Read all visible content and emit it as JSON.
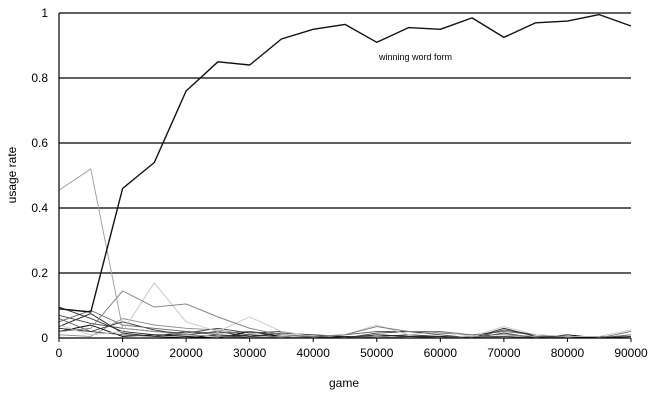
{
  "chart_data": {
    "type": "line",
    "title": "",
    "xlabel": "game",
    "ylabel": "usage rate",
    "xlim": [
      0,
      90000
    ],
    "ylim": [
      0,
      1
    ],
    "x_ticks": [
      "0",
      "10000",
      "20000",
      "30000",
      "40000",
      "50000",
      "60000",
      "70000",
      "80000",
      "90000"
    ],
    "y_ticks": [
      "0",
      "0.2",
      "0.4",
      "0.6",
      "0.8",
      "1"
    ],
    "grid": "horizontal",
    "annotation": "winning word form",
    "x": [
      0,
      5000,
      10000,
      15000,
      20000,
      25000,
      30000,
      35000,
      40000,
      45000,
      50000,
      55000,
      60000,
      65000,
      70000,
      75000,
      80000,
      85000,
      90000
    ],
    "series": [
      {
        "color": "#111111",
        "values": [
          0.09,
          0.08,
          0.46,
          0.54,
          0.76,
          0.85,
          0.84,
          0.92,
          0.95,
          0.965,
          0.91,
          0.955,
          0.95,
          0.985,
          0.925,
          0.97,
          0.975,
          0.995,
          0.96
        ]
      },
      {
        "color": "#9a9a9a",
        "values": [
          0.455,
          0.52,
          0.03,
          0.02,
          0.01,
          0.005,
          0.0,
          0.005,
          0.0,
          0.0,
          0.005,
          0.0,
          0.0,
          0.005,
          0.0,
          0.0,
          0.0,
          0.0,
          0.0
        ]
      },
      {
        "color": "#7a7a7a",
        "values": [
          0.02,
          0.03,
          0.145,
          0.095,
          0.105,
          0.065,
          0.03,
          0.01,
          0.005,
          0.01,
          0.035,
          0.02,
          0.02,
          0.01,
          0.01,
          0.005,
          0.0,
          0.0,
          0.02
        ]
      },
      {
        "color": "#c4c4c4",
        "values": [
          0.04,
          0.01,
          0.02,
          0.17,
          0.05,
          0.02,
          0.065,
          0.02,
          0.005,
          0.01,
          0.04,
          0.01,
          0.02,
          0.005,
          0.035,
          0.01,
          0.005,
          0.005,
          0.025
        ]
      },
      {
        "color": "#222222",
        "values": [
          0.095,
          0.06,
          0.02,
          0.01,
          0.01,
          0.005,
          0.01,
          0.005,
          0.0,
          0.0,
          0.01,
          0.005,
          0.005,
          0.0,
          0.03,
          0.005,
          0.005,
          0.0,
          0.005
        ]
      },
      {
        "color": "#444444",
        "values": [
          0.07,
          0.045,
          0.03,
          0.02,
          0.015,
          0.03,
          0.015,
          0.02,
          0.005,
          0.0,
          0.015,
          0.02,
          0.01,
          0.0,
          0.025,
          0.01,
          0.0,
          0.0,
          0.0
        ]
      },
      {
        "color": "#666666",
        "values": [
          0.05,
          0.085,
          0.04,
          0.03,
          0.02,
          0.015,
          0.02,
          0.01,
          0.005,
          0.01,
          0.02,
          0.02,
          0.015,
          0.01,
          0.02,
          0.01,
          0.005,
          0.0,
          0.01
        ]
      },
      {
        "color": "#333333",
        "values": [
          0.03,
          0.02,
          0.05,
          0.025,
          0.01,
          0.02,
          0.005,
          0.015,
          0.01,
          0.005,
          0.005,
          0.01,
          0.005,
          0.0,
          0.015,
          0.0,
          0.0,
          0.005,
          0.0
        ]
      },
      {
        "color": "#555555",
        "values": [
          0.06,
          0.02,
          0.01,
          0.005,
          0.02,
          0.01,
          0.005,
          0.0,
          0.005,
          0.0,
          0.0,
          0.005,
          0.0,
          0.005,
          0.005,
          0.0,
          0.0,
          0.0,
          0.0
        ]
      },
      {
        "color": "#000000",
        "values": [
          0.02,
          0.04,
          0.005,
          0.01,
          0.005,
          0.0,
          0.02,
          0.005,
          0.0,
          0.005,
          0.0,
          0.0,
          0.0,
          0.0,
          0.0,
          0.0,
          0.01,
          0.0,
          0.0
        ]
      },
      {
        "color": "#8c8c8c",
        "values": [
          0.01,
          0.005,
          0.06,
          0.04,
          0.03,
          0.025,
          0.01,
          0.005,
          0.0,
          0.0,
          0.01,
          0.005,
          0.005,
          0.0,
          0.0,
          0.0,
          0.0,
          0.0,
          0.01
        ]
      },
      {
        "color": "#1a1a1a",
        "values": [
          0.035,
          0.075,
          0.015,
          0.005,
          0.0,
          0.01,
          0.0,
          0.0,
          0.0,
          0.0,
          0.0,
          0.0,
          0.0,
          0.0,
          0.005,
          0.0,
          0.0,
          0.0,
          0.0
        ]
      }
    ]
  }
}
